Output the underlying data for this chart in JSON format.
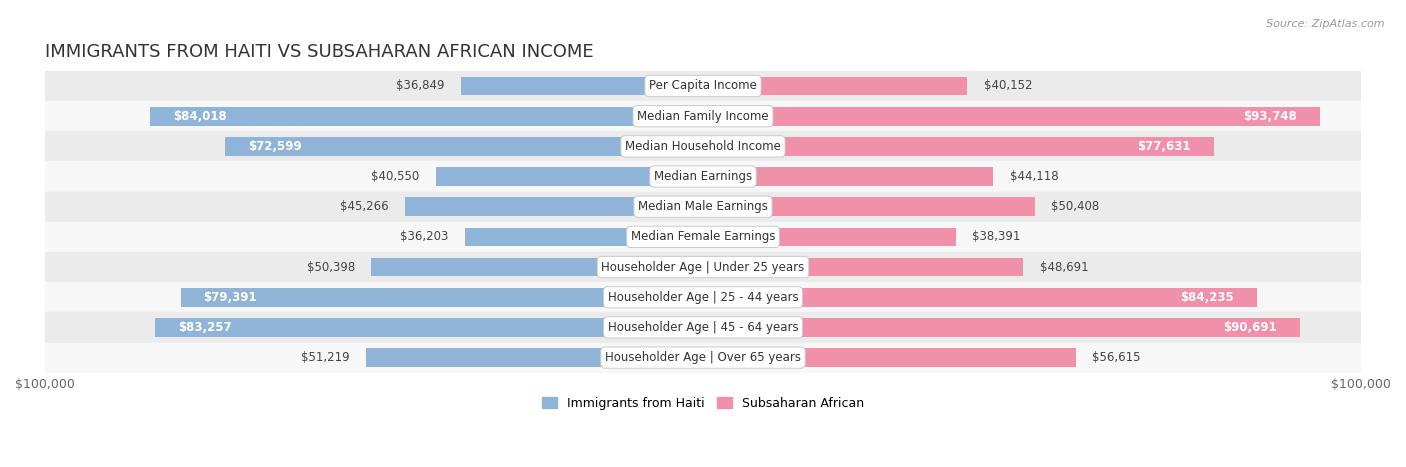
{
  "title": "IMMIGRANTS FROM HAITI VS SUBSAHARAN AFRICAN INCOME",
  "source": "Source: ZipAtlas.com",
  "categories": [
    "Per Capita Income",
    "Median Family Income",
    "Median Household Income",
    "Median Earnings",
    "Median Male Earnings",
    "Median Female Earnings",
    "Householder Age | Under 25 years",
    "Householder Age | 25 - 44 years",
    "Householder Age | 45 - 64 years",
    "Householder Age | Over 65 years"
  ],
  "haiti_values": [
    36849,
    84018,
    72599,
    40550,
    45266,
    36203,
    50398,
    79391,
    83257,
    51219
  ],
  "subsaharan_values": [
    40152,
    93748,
    77631,
    44118,
    50408,
    38391,
    48691,
    84235,
    90691,
    56615
  ],
  "haiti_labels": [
    "$36,849",
    "$84,018",
    "$72,599",
    "$40,550",
    "$45,266",
    "$36,203",
    "$50,398",
    "$79,391",
    "$83,257",
    "$51,219"
  ],
  "subsaharan_labels": [
    "$40,152",
    "$93,748",
    "$77,631",
    "$44,118",
    "$50,408",
    "$38,391",
    "$48,691",
    "$84,235",
    "$90,691",
    "$56,615"
  ],
  "haiti_color": "#90b4d8",
  "subsaharan_color": "#f090aa",
  "row_bg_odd": "#ebebeb",
  "row_bg_even": "#f7f7f7",
  "bar_height": 0.62,
  "xlim": 100000,
  "title_fontsize": 13,
  "label_fontsize": 8.5,
  "tick_fontsize": 9,
  "legend_haiti": "Immigrants from Haiti",
  "legend_subsaharan": "Subsaharan African",
  "category_label_fontsize": 8.5,
  "inside_threshold": 58000
}
